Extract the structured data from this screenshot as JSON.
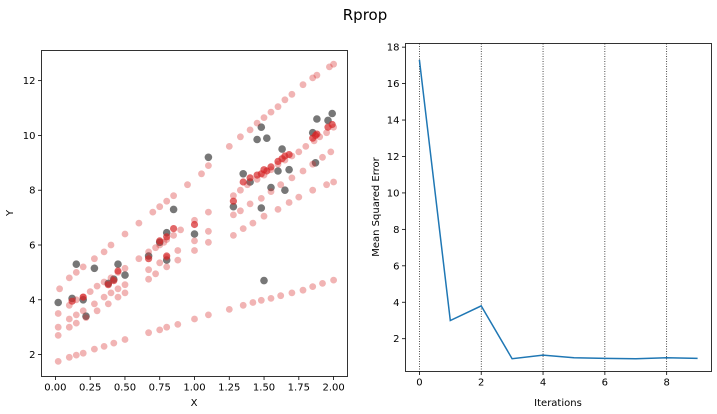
{
  "figure": {
    "title": "Rprop"
  },
  "chart_data": [
    {
      "type": "scatter",
      "xlabel": "X",
      "ylabel": "Y",
      "xlim": [
        -0.1,
        2.1
      ],
      "ylim": [
        1.2,
        13.1
      ],
      "xticks": [
        "0.00",
        "0.25",
        "0.50",
        "0.75",
        "1.00",
        "1.25",
        "1.50",
        "1.75",
        "2.00"
      ],
      "xtick_values": [
        0,
        0.25,
        0.5,
        0.75,
        1.0,
        1.25,
        1.5,
        1.75,
        2.0
      ],
      "yticks": [
        "2",
        "4",
        "6",
        "8",
        "10",
        "12"
      ],
      "ytick_values": [
        2,
        4,
        6,
        8,
        10,
        12
      ],
      "grid": false,
      "colors": {
        "observed": "#555555",
        "predicted": "#d62728"
      },
      "series": [
        {
          "values": [
            [
              0.02,
              3.9
            ],
            [
              0.12,
              4.05
            ],
            [
              0.15,
              5.3
            ],
            [
              0.2,
              4.0
            ],
            [
              0.22,
              3.4
            ],
            [
              0.28,
              5.15
            ],
            [
              0.38,
              4.6
            ],
            [
              0.42,
              4.75
            ],
            [
              0.45,
              5.3
            ],
            [
              0.5,
              4.9
            ],
            [
              0.67,
              5.6
            ],
            [
              0.75,
              6.1
            ],
            [
              0.8,
              6.45
            ],
            [
              0.8,
              5.45
            ],
            [
              0.85,
              7.3
            ],
            [
              1.0,
              6.4
            ],
            [
              1.1,
              9.2
            ],
            [
              1.28,
              7.4
            ],
            [
              1.35,
              8.6
            ],
            [
              1.4,
              8.3
            ],
            [
              1.45,
              9.85
            ],
            [
              1.48,
              10.3
            ],
            [
              1.48,
              7.35
            ],
            [
              1.5,
              4.7
            ],
            [
              1.52,
              9.9
            ],
            [
              1.55,
              8.1
            ],
            [
              1.6,
              8.7
            ],
            [
              1.63,
              9.5
            ],
            [
              1.65,
              8.0
            ],
            [
              1.68,
              8.75
            ],
            [
              1.85,
              10.1
            ],
            [
              1.87,
              9.0
            ],
            [
              1.88,
              10.6
            ],
            [
              1.96,
              10.55
            ],
            [
              1.99,
              10.8
            ]
          ]
        },
        {
          "values": [
            [
              0.03,
              4.4
            ],
            [
              0.1,
              4.8
            ],
            [
              0.15,
              5.0
            ],
            [
              0.2,
              5.2
            ],
            [
              0.28,
              5.5
            ],
            [
              0.35,
              5.75
            ],
            [
              0.4,
              6.0
            ],
            [
              0.5,
              6.4
            ],
            [
              0.6,
              6.8
            ],
            [
              0.7,
              7.2
            ],
            [
              0.75,
              7.4
            ],
            [
              0.8,
              7.6
            ],
            [
              0.85,
              7.8
            ],
            [
              0.95,
              8.2
            ],
            [
              1.05,
              8.6
            ],
            [
              1.1,
              8.9
            ],
            [
              1.25,
              9.6
            ],
            [
              1.33,
              9.95
            ],
            [
              1.4,
              10.2
            ],
            [
              1.45,
              10.45
            ],
            [
              1.5,
              10.65
            ],
            [
              1.55,
              10.85
            ],
            [
              1.6,
              11.05
            ],
            [
              1.65,
              11.3
            ],
            [
              1.7,
              11.5
            ],
            [
              1.78,
              11.85
            ],
            [
              1.85,
              12.1
            ],
            [
              1.88,
              12.2
            ],
            [
              1.97,
              12.5
            ],
            [
              2.0,
              12.6
            ],
            [
              0.02,
              3.5
            ],
            [
              0.1,
              3.8
            ],
            [
              0.15,
              4.0
            ],
            [
              0.2,
              4.1
            ],
            [
              0.25,
              4.3
            ],
            [
              0.3,
              4.5
            ],
            [
              0.35,
              4.65
            ],
            [
              0.4,
              4.8
            ],
            [
              0.45,
              5.0
            ],
            [
              0.5,
              5.15
            ],
            [
              0.6,
              5.5
            ],
            [
              0.67,
              5.75
            ],
            [
              0.72,
              5.9
            ],
            [
              0.75,
              6.0
            ],
            [
              0.78,
              6.1
            ],
            [
              0.8,
              6.2
            ],
            [
              0.85,
              6.35
            ],
            [
              0.9,
              6.55
            ],
            [
              1.0,
              6.9
            ],
            [
              1.1,
              7.2
            ],
            [
              1.28,
              7.8
            ],
            [
              1.33,
              8.0
            ],
            [
              1.38,
              8.2
            ],
            [
              1.45,
              8.4
            ],
            [
              1.5,
              8.55
            ],
            [
              1.55,
              8.75
            ],
            [
              1.6,
              8.95
            ],
            [
              1.65,
              9.1
            ],
            [
              1.7,
              9.25
            ],
            [
              1.75,
              9.4
            ],
            [
              1.8,
              9.6
            ],
            [
              1.86,
              9.8
            ],
            [
              1.9,
              9.95
            ],
            [
              1.95,
              10.1
            ],
            [
              2.0,
              10.3
            ],
            [
              0.02,
              3.0
            ],
            [
              0.1,
              3.3
            ],
            [
              0.15,
              3.45
            ],
            [
              0.2,
              3.6
            ],
            [
              0.28,
              3.85
            ],
            [
              0.35,
              4.1
            ],
            [
              0.4,
              4.25
            ],
            [
              0.45,
              4.4
            ],
            [
              0.5,
              4.55
            ],
            [
              0.67,
              5.1
            ],
            [
              0.75,
              5.35
            ],
            [
              0.8,
              5.55
            ],
            [
              0.88,
              5.8
            ],
            [
              1.0,
              6.15
            ],
            [
              1.1,
              6.5
            ],
            [
              1.28,
              7.1
            ],
            [
              1.33,
              7.25
            ],
            [
              1.4,
              7.5
            ],
            [
              1.48,
              7.7
            ],
            [
              1.55,
              7.95
            ],
            [
              1.62,
              8.2
            ],
            [
              1.7,
              8.45
            ],
            [
              1.78,
              8.7
            ],
            [
              1.85,
              8.95
            ],
            [
              1.92,
              9.2
            ],
            [
              1.98,
              9.4
            ],
            [
              0.02,
              2.7
            ],
            [
              0.1,
              3.0
            ],
            [
              0.15,
              3.15
            ],
            [
              0.22,
              3.35
            ],
            [
              0.3,
              3.6
            ],
            [
              0.38,
              3.85
            ],
            [
              0.45,
              4.1
            ],
            [
              0.5,
              4.25
            ],
            [
              0.67,
              4.75
            ],
            [
              0.72,
              4.95
            ],
            [
              0.8,
              5.2
            ],
            [
              0.88,
              5.45
            ],
            [
              1.0,
              5.8
            ],
            [
              1.1,
              6.1
            ],
            [
              1.28,
              6.35
            ],
            [
              1.35,
              6.6
            ],
            [
              1.42,
              6.8
            ],
            [
              1.5,
              7.05
            ],
            [
              1.6,
              7.3
            ],
            [
              1.68,
              7.55
            ],
            [
              1.75,
              7.75
            ],
            [
              1.85,
              8.0
            ],
            [
              1.95,
              8.2
            ],
            [
              2.0,
              8.3
            ],
            [
              0.02,
              1.75
            ],
            [
              0.1,
              1.9
            ],
            [
              0.15,
              1.98
            ],
            [
              0.2,
              2.05
            ],
            [
              0.28,
              2.2
            ],
            [
              0.35,
              2.3
            ],
            [
              0.42,
              2.42
            ],
            [
              0.5,
              2.55
            ],
            [
              0.67,
              2.8
            ],
            [
              0.75,
              2.9
            ],
            [
              0.8,
              3.0
            ],
            [
              0.88,
              3.1
            ],
            [
              1.0,
              3.3
            ],
            [
              1.1,
              3.45
            ],
            [
              1.25,
              3.65
            ],
            [
              1.35,
              3.8
            ],
            [
              1.42,
              3.9
            ],
            [
              1.48,
              3.98
            ],
            [
              1.55,
              4.05
            ],
            [
              1.62,
              4.15
            ],
            [
              1.7,
              4.25
            ],
            [
              1.78,
              4.35
            ],
            [
              1.85,
              4.48
            ],
            [
              1.92,
              4.6
            ],
            [
              2.0,
              4.72
            ]
          ]
        },
        {
          "values": [
            [
              0.12,
              3.95
            ],
            [
              0.2,
              4.1
            ],
            [
              0.38,
              4.55
            ],
            [
              0.42,
              4.7
            ],
            [
              0.45,
              5.05
            ],
            [
              0.67,
              5.5
            ],
            [
              0.75,
              6.15
            ],
            [
              0.8,
              6.3
            ],
            [
              0.8,
              5.6
            ],
            [
              0.85,
              6.6
            ],
            [
              1.0,
              6.75
            ],
            [
              1.28,
              7.6
            ],
            [
              1.35,
              8.3
            ],
            [
              1.4,
              8.45
            ],
            [
              1.45,
              8.55
            ],
            [
              1.48,
              8.6
            ],
            [
              1.5,
              8.75
            ],
            [
              1.52,
              8.7
            ],
            [
              1.55,
              8.85
            ],
            [
              1.6,
              9.05
            ],
            [
              1.63,
              9.15
            ],
            [
              1.65,
              9.25
            ],
            [
              1.68,
              9.3
            ],
            [
              1.85,
              9.9
            ],
            [
              1.87,
              10.0
            ],
            [
              1.88,
              10.05
            ],
            [
              1.96,
              10.3
            ],
            [
              1.99,
              10.4
            ]
          ]
        }
      ]
    },
    {
      "type": "line",
      "xlabel": "Iterations",
      "ylabel": "Mean Squared Error",
      "xlim": [
        -0.45,
        9.45
      ],
      "ylim": [
        0.2,
        18.2
      ],
      "xticks": [
        "0",
        "2",
        "4",
        "6",
        "8"
      ],
      "xtick_values": [
        0,
        2,
        4,
        6,
        8
      ],
      "yticks": [
        "2",
        "4",
        "6",
        "8",
        "10",
        "12",
        "14",
        "16",
        "18"
      ],
      "ytick_values": [
        2,
        4,
        6,
        8,
        10,
        12,
        14,
        16,
        18
      ],
      "grid": "vertical dotted lines at x ticks",
      "colors": {
        "line": "#1f77b4"
      },
      "x": [
        0,
        1,
        2,
        3,
        4,
        5,
        6,
        7,
        8,
        9
      ],
      "values": [
        17.3,
        3.0,
        3.8,
        0.9,
        1.1,
        0.95,
        0.92,
        0.9,
        0.95,
        0.92
      ]
    }
  ]
}
